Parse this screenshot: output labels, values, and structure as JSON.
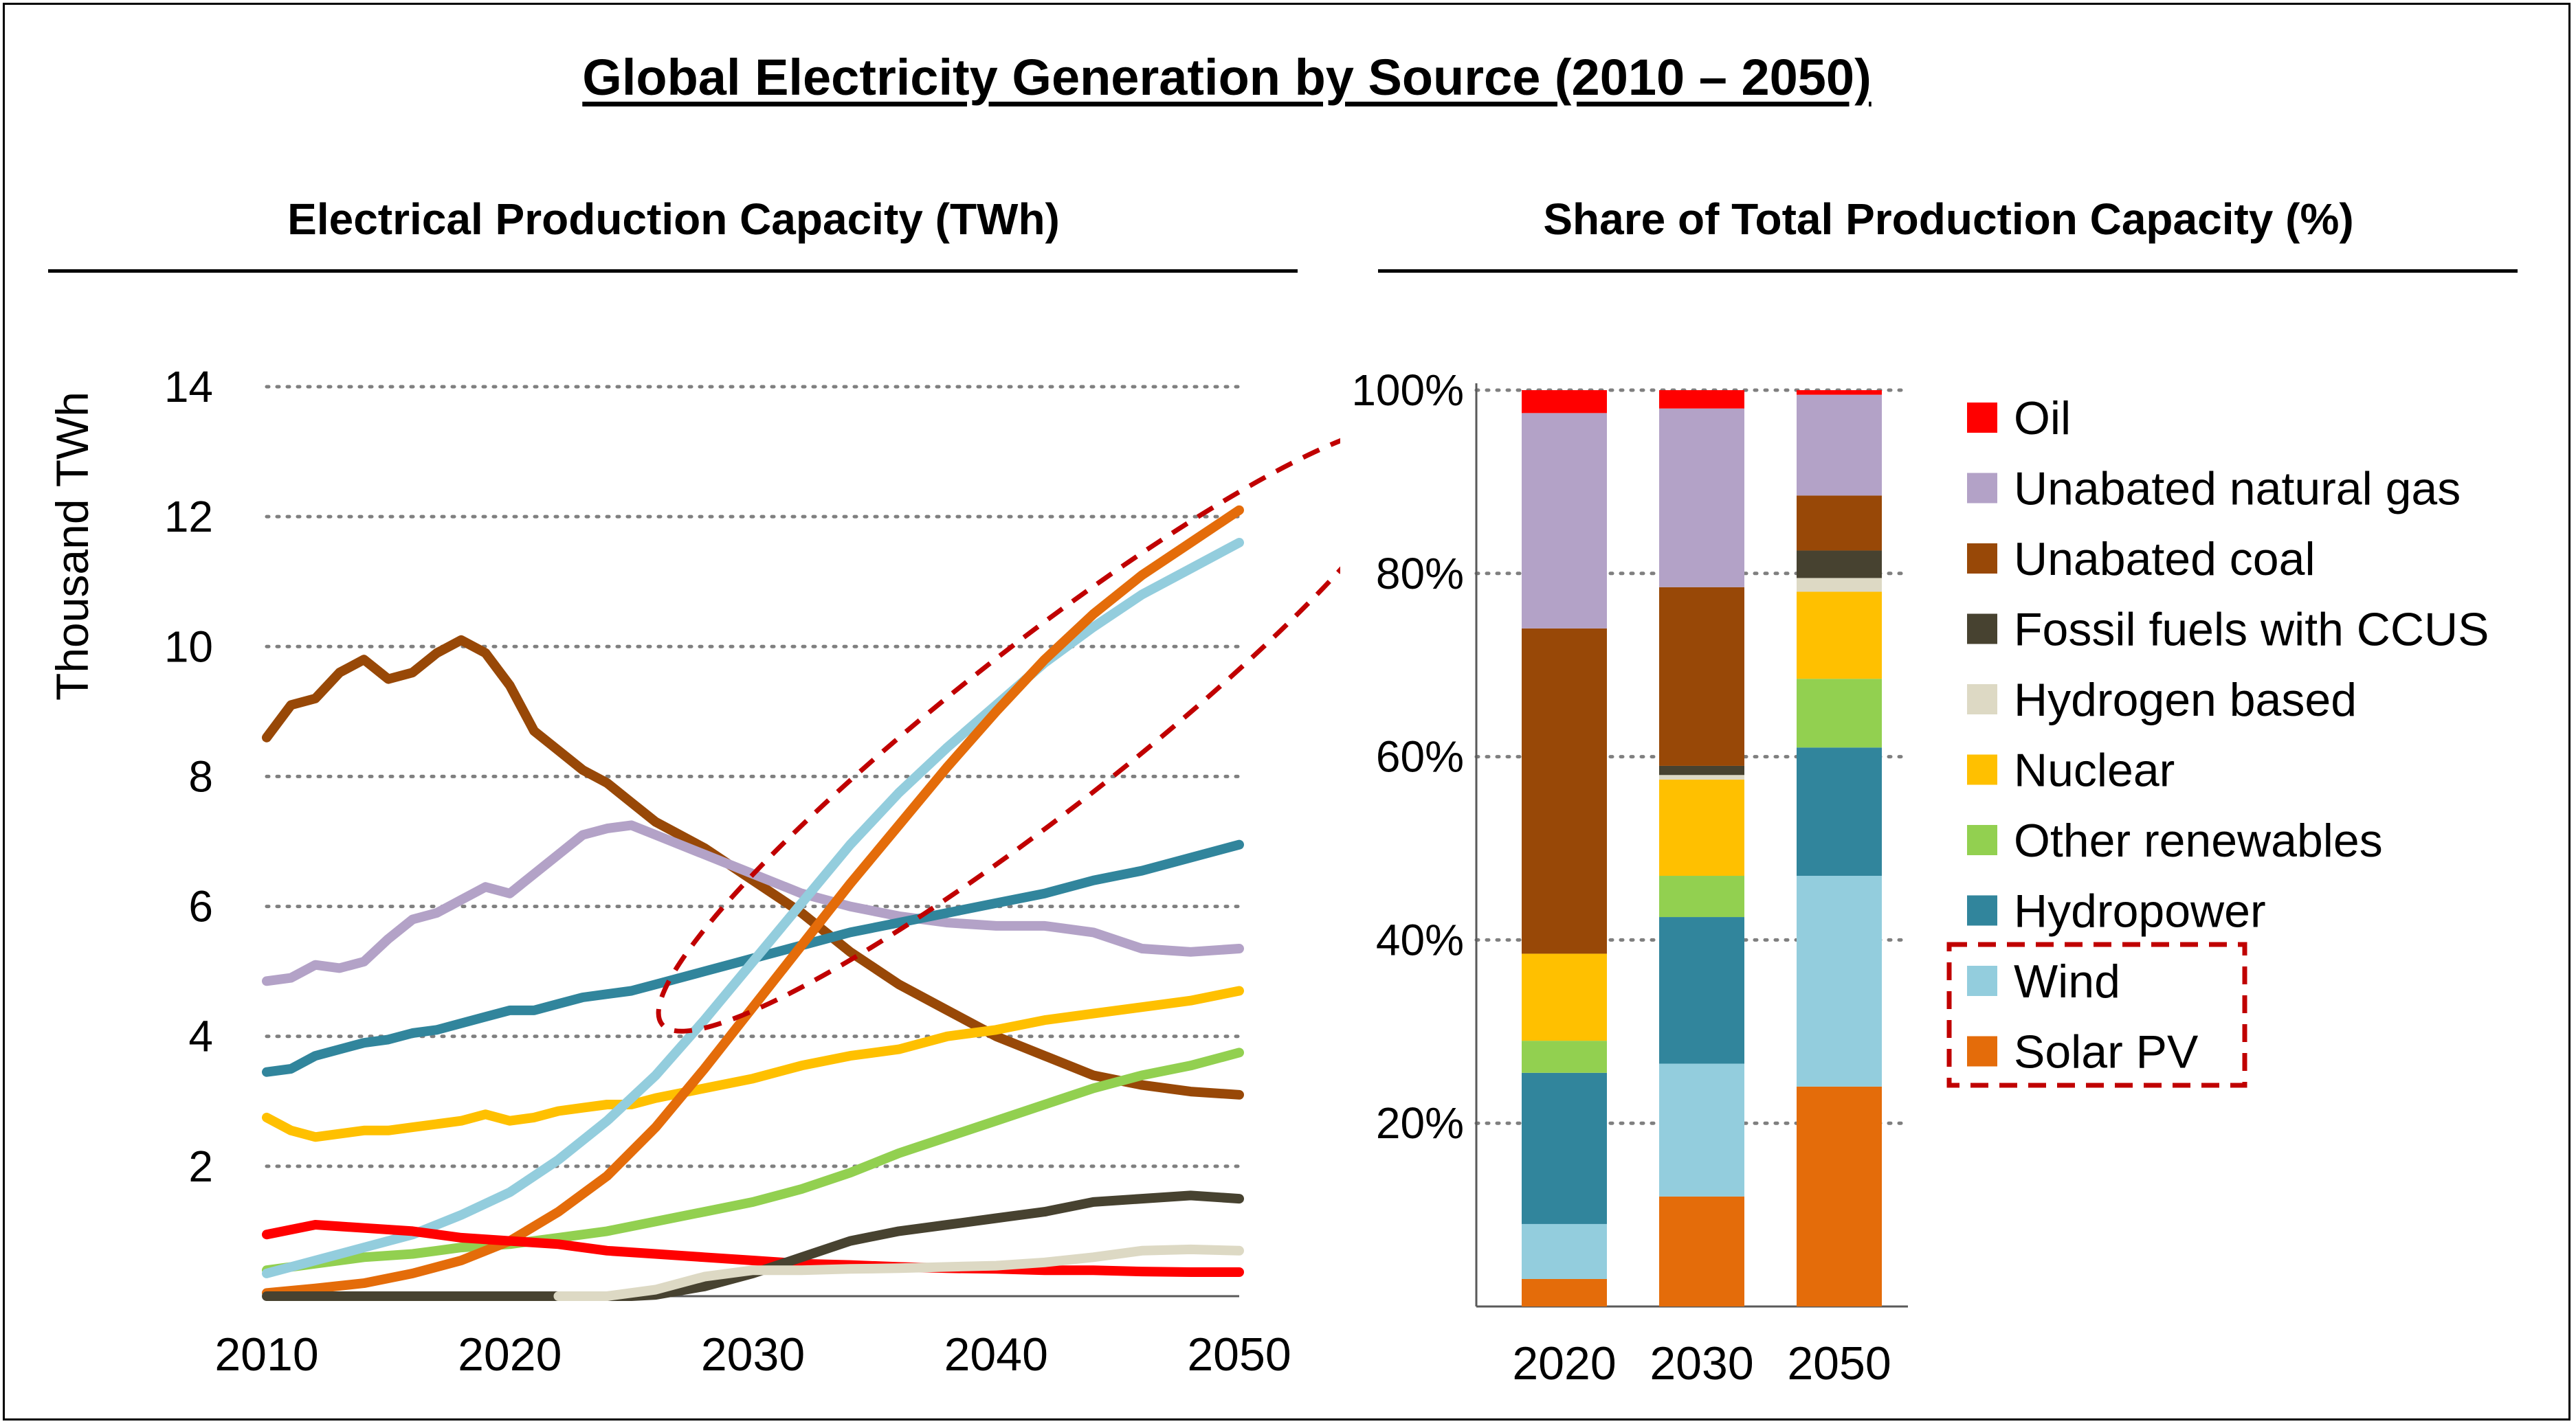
{
  "title": "Global Electricity Generation by Source (2010 – 2050)",
  "left_panel_title": "Electrical Production Capacity (TWh)",
  "right_panel_title": "Share of Total Production Capacity (%)",
  "colors": {
    "Oil": "#ff0000",
    "Unabated natural gas": "#b3a2c7",
    "Unabated coal": "#984807",
    "Fossil fuels with CCUS": "#474230",
    "Hydrogen based": "#ddd9c4",
    "Nuclear": "#ffc000",
    "Other renewables": "#92d050",
    "Hydropower": "#31859c",
    "Wind": "#93cddd",
    "Solar PV": "#e46c0a",
    "highlight": "#c00000"
  },
  "chart_data": [
    {
      "type": "line",
      "ylabel": "Thousand TWh",
      "xlim": [
        2010,
        2050
      ],
      "ylim": [
        0,
        14
      ],
      "xticks": [
        "2010",
        "2020",
        "2030",
        "2040",
        "2050"
      ],
      "yticks": [
        "2",
        "4",
        "6",
        "8",
        "10",
        "12",
        "14"
      ],
      "grid": "horizontal dotted",
      "annotations": [
        "Dashed ellipse highlighting Wind and Solar PV from about 2032 to 2050"
      ],
      "series": [
        {
          "name": "Unabated coal",
          "x": [
            2010,
            2011,
            2012,
            2013,
            2014,
            2015,
            2016,
            2017,
            2018,
            2019,
            2020,
            2021,
            2022,
            2023,
            2024,
            2025,
            2026,
            2028,
            2030,
            2032,
            2034,
            2036,
            2038,
            2040,
            2042,
            2044,
            2046,
            2048,
            2050
          ],
          "y": [
            8.6,
            9.1,
            9.2,
            9.6,
            9.8,
            9.5,
            9.6,
            9.9,
            10.1,
            9.9,
            9.4,
            8.7,
            8.4,
            8.1,
            7.9,
            7.6,
            7.3,
            6.9,
            6.4,
            5.9,
            5.3,
            4.8,
            4.4,
            4.0,
            3.7,
            3.4,
            3.25,
            3.15,
            3.1
          ]
        },
        {
          "name": "Unabated natural gas",
          "x": [
            2010,
            2011,
            2012,
            2013,
            2014,
            2015,
            2016,
            2017,
            2018,
            2019,
            2020,
            2021,
            2022,
            2023,
            2024,
            2025,
            2026,
            2028,
            2030,
            2032,
            2034,
            2036,
            2038,
            2040,
            2042,
            2044,
            2046,
            2048,
            2050
          ],
          "y": [
            4.85,
            4.9,
            5.1,
            5.05,
            5.15,
            5.5,
            5.8,
            5.9,
            6.1,
            6.3,
            6.2,
            6.5,
            6.8,
            7.1,
            7.2,
            7.25,
            7.1,
            6.8,
            6.5,
            6.2,
            6.0,
            5.85,
            5.75,
            5.7,
            5.7,
            5.6,
            5.35,
            5.3,
            5.35
          ]
        },
        {
          "name": "Hydropower",
          "x": [
            2010,
            2011,
            2012,
            2013,
            2014,
            2015,
            2016,
            2017,
            2018,
            2019,
            2020,
            2021,
            2022,
            2023,
            2024,
            2025,
            2026,
            2028,
            2030,
            2032,
            2034,
            2036,
            2038,
            2040,
            2042,
            2044,
            2046,
            2048,
            2050
          ],
          "y": [
            3.45,
            3.5,
            3.7,
            3.8,
            3.9,
            3.95,
            4.05,
            4.1,
            4.2,
            4.3,
            4.4,
            4.4,
            4.5,
            4.6,
            4.65,
            4.7,
            4.8,
            5.0,
            5.2,
            5.4,
            5.6,
            5.75,
            5.9,
            6.05,
            6.2,
            6.4,
            6.55,
            6.75,
            6.95
          ]
        },
        {
          "name": "Nuclear",
          "x": [
            2010,
            2011,
            2012,
            2013,
            2014,
            2015,
            2016,
            2017,
            2018,
            2019,
            2020,
            2021,
            2022,
            2023,
            2024,
            2025,
            2026,
            2028,
            2030,
            2032,
            2034,
            2036,
            2038,
            2040,
            2042,
            2044,
            2046,
            2048,
            2050
          ],
          "y": [
            2.75,
            2.55,
            2.45,
            2.5,
            2.55,
            2.55,
            2.6,
            2.65,
            2.7,
            2.8,
            2.7,
            2.75,
            2.85,
            2.9,
            2.95,
            2.95,
            3.05,
            3.2,
            3.35,
            3.55,
            3.7,
            3.8,
            4.0,
            4.1,
            4.25,
            4.35,
            4.45,
            4.55,
            4.7
          ]
        },
        {
          "name": "Other renewables",
          "x": [
            2010,
            2012,
            2014,
            2016,
            2018,
            2020,
            2022,
            2024,
            2026,
            2028,
            2030,
            2032,
            2034,
            2036,
            2038,
            2040,
            2042,
            2044,
            2046,
            2048,
            2050
          ],
          "y": [
            0.4,
            0.5,
            0.6,
            0.65,
            0.75,
            0.8,
            0.9,
            1.0,
            1.15,
            1.3,
            1.45,
            1.65,
            1.9,
            2.2,
            2.45,
            2.7,
            2.95,
            3.2,
            3.4,
            3.55,
            3.75
          ]
        },
        {
          "name": "Wind",
          "x": [
            2010,
            2012,
            2014,
            2016,
            2018,
            2020,
            2022,
            2024,
            2026,
            2028,
            2030,
            2032,
            2034,
            2036,
            2038,
            2040,
            2042,
            2044,
            2046,
            2048,
            2050
          ],
          "y": [
            0.35,
            0.55,
            0.75,
            0.95,
            1.25,
            1.6,
            2.1,
            2.7,
            3.4,
            4.25,
            5.15,
            6.05,
            6.95,
            7.75,
            8.45,
            9.1,
            9.75,
            10.3,
            10.8,
            11.2,
            11.6
          ]
        },
        {
          "name": "Solar PV",
          "x": [
            2010,
            2012,
            2014,
            2016,
            2018,
            2020,
            2022,
            2024,
            2026,
            2028,
            2030,
            2032,
            2034,
            2036,
            2038,
            2040,
            2042,
            2044,
            2046,
            2048,
            2050
          ],
          "y": [
            0.05,
            0.12,
            0.2,
            0.35,
            0.55,
            0.85,
            1.3,
            1.85,
            2.6,
            3.5,
            4.45,
            5.4,
            6.35,
            7.25,
            8.15,
            9.0,
            9.8,
            10.5,
            11.1,
            11.6,
            12.1
          ]
        },
        {
          "name": "Oil",
          "x": [
            2010,
            2012,
            2014,
            2016,
            2018,
            2020,
            2022,
            2024,
            2026,
            2028,
            2030,
            2032,
            2034,
            2036,
            2038,
            2040,
            2042,
            2044,
            2046,
            2048,
            2050
          ],
          "y": [
            0.95,
            1.1,
            1.05,
            1.0,
            0.9,
            0.85,
            0.8,
            0.7,
            0.65,
            0.6,
            0.55,
            0.5,
            0.48,
            0.45,
            0.43,
            0.42,
            0.4,
            0.4,
            0.38,
            0.37,
            0.37
          ]
        },
        {
          "name": "Fossil fuels with CCUS",
          "x": [
            2010,
            2014,
            2018,
            2022,
            2025,
            2026,
            2028,
            2030,
            2032,
            2034,
            2036,
            2038,
            2040,
            2042,
            2044,
            2046,
            2048,
            2050
          ],
          "y": [
            0,
            0,
            0,
            0,
            0,
            0.02,
            0.15,
            0.35,
            0.6,
            0.85,
            1.0,
            1.1,
            1.2,
            1.3,
            1.45,
            1.5,
            1.55,
            1.5
          ]
        },
        {
          "name": "Hydrogen based",
          "x": [
            2022,
            2024,
            2026,
            2028,
            2030,
            2032,
            2034,
            2036,
            2038,
            2040,
            2042,
            2044,
            2046,
            2048,
            2050
          ],
          "y": [
            0,
            0,
            0.1,
            0.3,
            0.4,
            0.4,
            0.42,
            0.43,
            0.45,
            0.47,
            0.52,
            0.6,
            0.7,
            0.72,
            0.7
          ]
        }
      ]
    },
    {
      "type": "bar",
      "stacked": true,
      "categories": [
        "2020",
        "2030",
        "2050"
      ],
      "yticks": [
        "20%",
        "40%",
        "60%",
        "80%",
        "100%"
      ],
      "ylim": [
        0,
        100
      ],
      "legend_position": "right",
      "legend_highlight": [
        "Wind",
        "Solar PV"
      ],
      "series": [
        {
          "name": "Solar PV",
          "values": [
            3,
            12,
            24
          ]
        },
        {
          "name": "Wind",
          "values": [
            6,
            14.5,
            23
          ]
        },
        {
          "name": "Hydropower",
          "values": [
            16.5,
            16,
            14
          ]
        },
        {
          "name": "Other renewables",
          "values": [
            3.5,
            4.5,
            7.5
          ]
        },
        {
          "name": "Nuclear",
          "values": [
            9.5,
            10.5,
            9.5
          ]
        },
        {
          "name": "Hydrogen based",
          "values": [
            0,
            0.5,
            1.5
          ]
        },
        {
          "name": "Fossil fuels with CCUS",
          "values": [
            0,
            1,
            3
          ]
        },
        {
          "name": "Unabated coal",
          "values": [
            35.5,
            19.5,
            6
          ]
        },
        {
          "name": "Unabated natural gas",
          "values": [
            23.5,
            19.5,
            11
          ]
        },
        {
          "name": "Oil",
          "values": [
            2.5,
            2,
            0.5
          ]
        }
      ]
    }
  ],
  "legend": [
    "Oil",
    "Unabated natural gas",
    "Unabated coal",
    "Fossil fuels with CCUS",
    "Hydrogen based",
    "Nuclear",
    "Other renewables",
    "Hydropower",
    "Wind",
    "Solar PV"
  ]
}
